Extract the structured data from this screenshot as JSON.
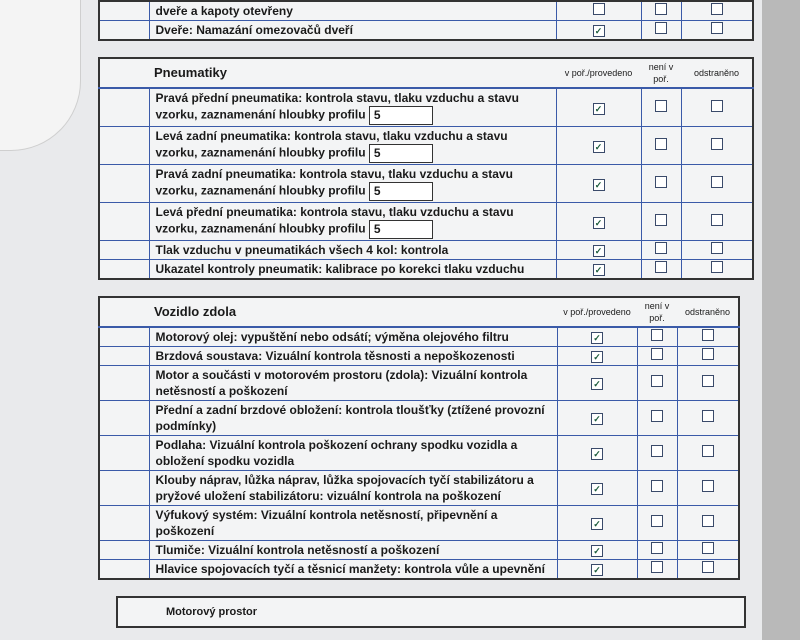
{
  "top_section": {
    "rows": [
      {
        "text": "dveře a kapoty otevřeny",
        "checks": [
          false,
          false,
          false
        ]
      },
      {
        "text": "Dveře: Namazání omezovačů dveří",
        "checks": [
          true,
          false,
          false
        ]
      }
    ]
  },
  "columns": {
    "done": "v poř./provedeno",
    "not_ok": "není v poř.",
    "fixed": "odstraněno"
  },
  "tires": {
    "title": "Pneumatiky",
    "rows": [
      {
        "text": "Pravá přední pneumatika: kontrola stavu, tlaku vzduchu a stavu vzorku, zaznamenání hloubky profilu",
        "depth": "5",
        "checks": [
          true,
          false,
          false
        ]
      },
      {
        "text": "Levá zadní pneumatika: kontrola stavu, tlaku vzduchu a stavu vzorku, zaznamenání hloubky profilu",
        "depth": "5",
        "checks": [
          true,
          false,
          false
        ]
      },
      {
        "text": "Pravá zadní pneumatika: kontrola stavu, tlaku vzduchu a stavu vzorku, zaznamenání hloubky profilu",
        "depth": "5",
        "checks": [
          true,
          false,
          false
        ]
      },
      {
        "text": "Levá přední pneumatika: kontrola stavu, tlaku vzduchu a stavu vzorku, zaznamenání hloubky profilu",
        "depth": "5",
        "checks": [
          true,
          false,
          false
        ]
      },
      {
        "text": "Tlak vzduchu v pneumatikách všech 4 kol: kontrola",
        "checks": [
          true,
          false,
          false
        ]
      },
      {
        "text": "Ukazatel kontroly pneumatik: kalibrace po korekci tlaku vzduchu",
        "checks": [
          true,
          false,
          false
        ]
      }
    ]
  },
  "underbody": {
    "title": "Vozidlo zdola",
    "rows": [
      {
        "text": "Motorový olej: vypuštění nebo odsátí; výměna olejového filtru",
        "checks": [
          true,
          false,
          false
        ]
      },
      {
        "text": "Brzdová soustava: Vizuální kontrola těsnosti a nepoškozenosti",
        "checks": [
          true,
          false,
          false
        ]
      },
      {
        "text": "Motor a součásti v motorovém prostoru (zdola): Vizuální kontrola netěsností a poškození",
        "checks": [
          true,
          false,
          false
        ]
      },
      {
        "text": "Přední a zadní brzdové obložení: kontrola tloušťky (ztížené provozní podmínky)",
        "checks": [
          true,
          false,
          false
        ]
      },
      {
        "text": "Podlaha: Vizuální kontrola poškození ochrany spodku vozidla a obložení spodku vozidla",
        "checks": [
          true,
          false,
          false
        ]
      },
      {
        "text": "Klouby náprav, lůžka náprav, lůžka spojovacích tyčí stabilizátoru a pryžové uložení stabilizátoru: vizuální kontrola na poškození",
        "checks": [
          true,
          false,
          false
        ]
      },
      {
        "text": "Výfukový systém: Vizuální kontrola netěsností, připevnění a poškození",
        "checks": [
          true,
          false,
          false
        ]
      },
      {
        "text": "Tlumiče: Vizuální kontrola netěsností a poškození",
        "checks": [
          true,
          false,
          false
        ]
      },
      {
        "text": "Hlavice spojovacích tyčí a těsnicí manžety: kontrola vůle a upevnění",
        "checks": [
          true,
          false,
          false
        ]
      }
    ]
  },
  "next_section": {
    "title": "Motorový prostor"
  },
  "colors": {
    "line": "#3a5aa8",
    "paper": "#f3f4f5",
    "check": "#1a5a3a"
  }
}
